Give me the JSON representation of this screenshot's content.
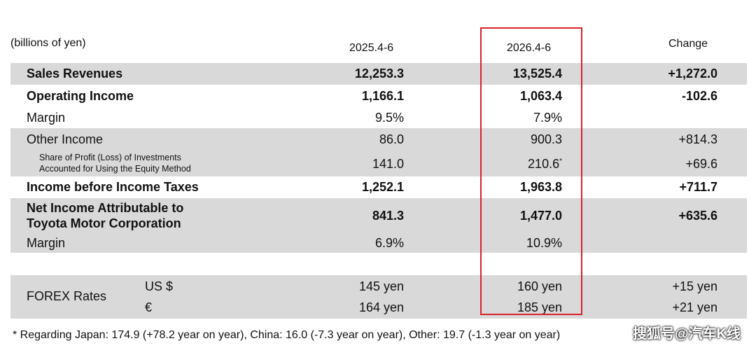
{
  "header": {
    "unit": "(billions of yen)",
    "col1": "2025.4-6",
    "col2": "2026.4-6",
    "col3": "Change"
  },
  "rows": {
    "sales": {
      "label": "Sales Revenues",
      "v1": "12,253.3",
      "v2": "13,525.4",
      "chg": "+1,272.0"
    },
    "operating": {
      "label": "Operating Income",
      "v1": "1,166.1",
      "v2": "1,063.4",
      "chg": "-102.6"
    },
    "margin1": {
      "label": "Margin",
      "v1": "9.5%",
      "v2": "7.9%",
      "chg": ""
    },
    "other": {
      "label": "Other Income",
      "v1": "86.0",
      "v2": "900.3",
      "chg": "+814.3"
    },
    "share": {
      "label_line1": "Share of Profit (Loss) of Investments",
      "label_line2": "Accounted for Using the Equity Method",
      "v1": "141.0",
      "v2": "210.6",
      "v2_mark": "*",
      "chg": "+69.6"
    },
    "pretax": {
      "label": "Income before Income Taxes",
      "v1": "1,252.1",
      "v2": "1,963.8",
      "chg": "+711.7"
    },
    "net": {
      "label_line1": "Net Income Attributable to",
      "label_line2": "Toyota Motor Corporation",
      "v1": "841.3",
      "v2": "1,477.0",
      "chg": "+635.6"
    },
    "margin2": {
      "label": "Margin",
      "v1": "6.9%",
      "v2": "10.9%",
      "chg": ""
    }
  },
  "forex": {
    "label": "FOREX Rates",
    "usd": {
      "currency": "US $",
      "v1": "145 yen",
      "v2": "160 yen",
      "chg": "+15 yen"
    },
    "eur": {
      "currency": "€",
      "v1": "164 yen",
      "v2": "185 yen",
      "chg": "+21 yen"
    }
  },
  "footnote": "* Regarding Japan: 174.9 (+78.2 year on year), China: 16.0  (-7.3 year on year), Other: 19.7 (-1.3 year on year)",
  "watermark": "搜狐号@汽车K线",
  "colors": {
    "band": "#d9d9d9",
    "highlight_box": "#d8232a"
  }
}
